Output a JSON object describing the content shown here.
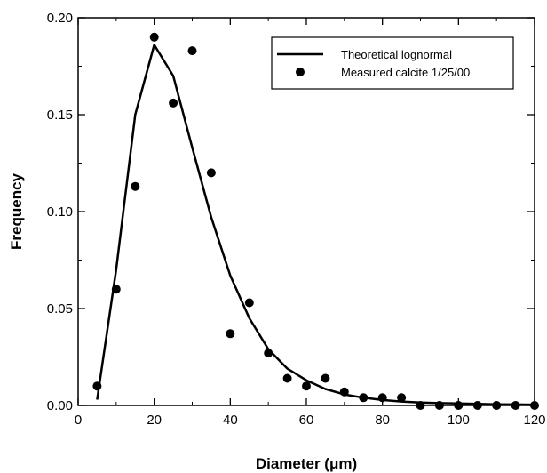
{
  "chart_data": {
    "type": "scatter",
    "title": "",
    "xlabel": "Diameter  (μm)",
    "ylabel": "Frequency",
    "xlim": [
      0,
      120
    ],
    "ylim": [
      0,
      0.2
    ],
    "x_ticks": [
      "0",
      "20",
      "40",
      "60",
      "80",
      "100",
      "120"
    ],
    "y_ticks": [
      "0.00",
      "0.05",
      "0.10",
      "0.15",
      "0.20"
    ],
    "grid": false,
    "legend_position": "top-right",
    "series": [
      {
        "name": "Theoretical lognormal",
        "style": "line",
        "color": "#000000",
        "x": [
          5,
          10,
          15,
          20,
          25,
          30,
          35,
          40,
          45,
          50,
          55,
          60,
          65,
          70,
          75,
          80,
          85,
          90,
          95,
          100,
          105,
          110,
          115,
          120
        ],
        "y": [
          0.003,
          0.07,
          0.15,
          0.186,
          0.17,
          0.133,
          0.097,
          0.067,
          0.045,
          0.029,
          0.019,
          0.013,
          0.0085,
          0.0057,
          0.004,
          0.0028,
          0.002,
          0.0015,
          0.0012,
          0.001,
          0.0008,
          0.0006,
          0.0005,
          0.0004
        ]
      },
      {
        "name": "Measured calcite 1/25/00",
        "style": "points",
        "color": "#000000",
        "x": [
          5,
          10,
          15,
          20,
          25,
          30,
          35,
          40,
          45,
          50,
          55,
          60,
          65,
          70,
          75,
          80,
          85,
          90,
          95,
          100,
          105,
          110,
          115,
          120
        ],
        "y": [
          0.01,
          0.06,
          0.113,
          0.19,
          0.156,
          0.183,
          0.12,
          0.037,
          0.053,
          0.027,
          0.014,
          0.01,
          0.014,
          0.007,
          0.004,
          0.004,
          0.004,
          0.0,
          0.0,
          0.0,
          0.0,
          0.0,
          0.0,
          0.0
        ]
      }
    ]
  }
}
